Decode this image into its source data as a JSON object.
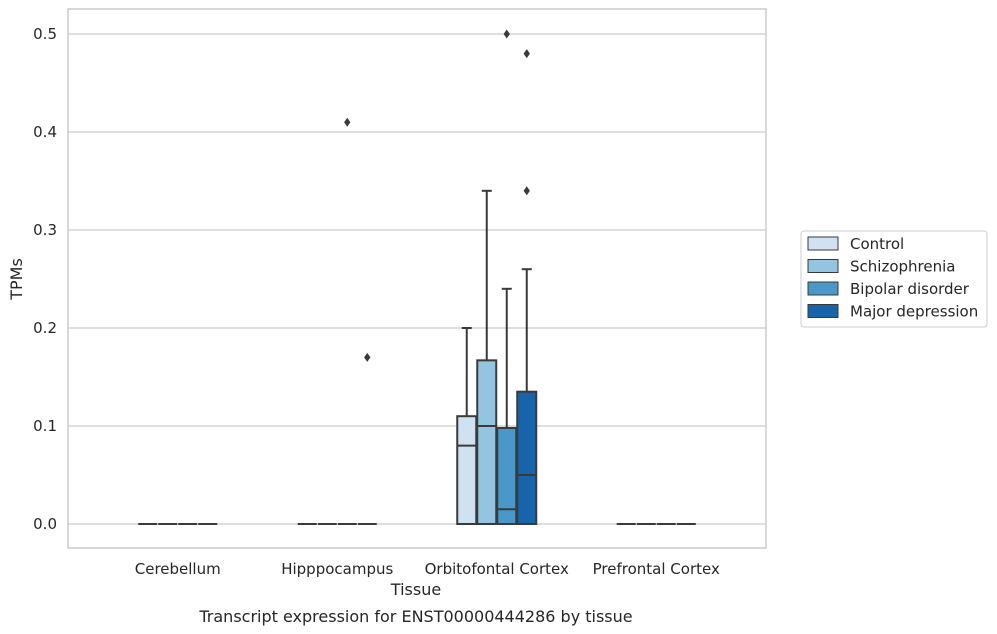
{
  "chart_data": {
    "type": "boxplot",
    "title": "",
    "caption": "Transcript expression for ENST00000444286 by tissue",
    "xlabel": "Tissue",
    "ylabel": "TPMs",
    "ylim": [
      -0.025,
      0.525
    ],
    "yticks": [
      0.0,
      0.1,
      0.2,
      0.3,
      0.4,
      0.5
    ],
    "ytick_labels": [
      "0.0",
      "0.1",
      "0.2",
      "0.3",
      "0.4",
      "0.5"
    ],
    "grid": "horizontal",
    "legend_position": "right",
    "categories": [
      "Cerebellum",
      "Hipppocampus",
      "Orbitofontal Cortex",
      "Prefrontal Cortex"
    ],
    "series": [
      {
        "name": "Control",
        "color": "#d0e1f2",
        "boxes": [
          {
            "min": 0,
            "q1": 0,
            "median": 0,
            "q3": 0,
            "max": 0,
            "outliers": []
          },
          {
            "min": 0,
            "q1": 0,
            "median": 0,
            "q3": 0,
            "max": 0,
            "outliers": []
          },
          {
            "min": 0,
            "q1": 0,
            "median": 0.08,
            "q3": 0.11,
            "max": 0.2,
            "outliers": []
          },
          {
            "min": 0,
            "q1": 0,
            "median": 0,
            "q3": 0,
            "max": 0,
            "outliers": []
          }
        ]
      },
      {
        "name": "Schizophrenia",
        "color": "#94c4df",
        "boxes": [
          {
            "min": 0,
            "q1": 0,
            "median": 0,
            "q3": 0,
            "max": 0,
            "outliers": []
          },
          {
            "min": 0,
            "q1": 0,
            "median": 0,
            "q3": 0,
            "max": 0,
            "outliers": []
          },
          {
            "min": 0,
            "q1": 0,
            "median": 0.1,
            "q3": 0.167,
            "max": 0.34,
            "outliers": []
          },
          {
            "min": 0,
            "q1": 0,
            "median": 0,
            "q3": 0,
            "max": 0,
            "outliers": []
          }
        ]
      },
      {
        "name": "Bipolar disorder",
        "color": "#4a98c9",
        "boxes": [
          {
            "min": 0,
            "q1": 0,
            "median": 0,
            "q3": 0,
            "max": 0,
            "outliers": []
          },
          {
            "min": 0,
            "q1": 0,
            "median": 0,
            "q3": 0,
            "max": 0,
            "outliers": [
              0.41
            ]
          },
          {
            "min": 0,
            "q1": 0,
            "median": 0.015,
            "q3": 0.098,
            "max": 0.24,
            "outliers": [
              0.5
            ]
          },
          {
            "min": 0,
            "q1": 0,
            "median": 0,
            "q3": 0,
            "max": 0,
            "outliers": []
          }
        ]
      },
      {
        "name": "Major depression",
        "color": "#1764ab",
        "boxes": [
          {
            "min": 0,
            "q1": 0,
            "median": 0,
            "q3": 0,
            "max": 0,
            "outliers": []
          },
          {
            "min": 0,
            "q1": 0,
            "median": 0,
            "q3": 0,
            "max": 0,
            "outliers": [
              0.17
            ]
          },
          {
            "min": 0,
            "q1": 0,
            "median": 0.05,
            "q3": 0.135,
            "max": 0.26,
            "outliers": [
              0.48,
              0.34
            ]
          },
          {
            "min": 0,
            "q1": 0,
            "median": 0,
            "q3": 0,
            "max": 0,
            "outliers": []
          }
        ]
      }
    ]
  }
}
